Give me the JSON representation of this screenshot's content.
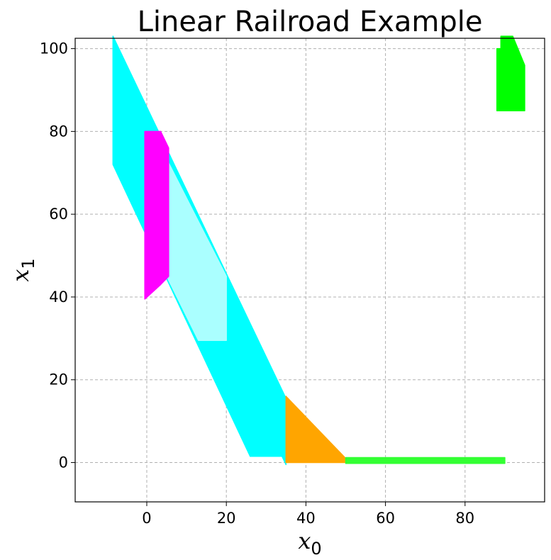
{
  "chart_data": {
    "type": "area",
    "title": "Linear Railroad Example",
    "xlabel": "x",
    "xlabel_sub": "0",
    "ylabel": "x",
    "ylabel_sub": "1",
    "xlim": [
      -18,
      100
    ],
    "ylim": [
      -9.5,
      102.5
    ],
    "xticks": [
      0,
      20,
      40,
      60,
      80
    ],
    "yticks": [
      0,
      20,
      40,
      60,
      80,
      100
    ],
    "grid": true,
    "regions": [
      {
        "name": "",
        "color": "#00ffff",
        "points": [
          [
            -8.5,
            72
          ],
          [
            -8.5,
            103
          ],
          [
            35,
            15.5
          ],
          [
            35,
            -0.5
          ],
          [
            34,
            1.5
          ],
          [
            26,
            1.5
          ]
        ]
      },
      {
        "name": "",
        "color": "#aaffff",
        "points": [
          [
            2,
            79
          ],
          [
            20,
            45
          ],
          [
            20,
            29.5
          ],
          [
            13,
            29.5
          ],
          [
            4,
            47
          ]
        ]
      },
      {
        "name": "",
        "color": "#ff00ff",
        "points": [
          [
            -0.5,
            39.5
          ],
          [
            -0.5,
            80
          ],
          [
            3.5,
            80
          ],
          [
            5.5,
            76
          ],
          [
            5.5,
            45
          ],
          [
            3.5,
            43
          ]
        ]
      },
      {
        "name": "",
        "color": "#ffa500",
        "points": [
          [
            35,
            16
          ],
          [
            35,
            0
          ],
          [
            50,
            0
          ],
          [
            50,
            1
          ]
        ]
      },
      {
        "name": "",
        "color": "#33ff33",
        "points": [
          [
            50,
            1.2
          ],
          [
            90,
            1.2
          ],
          [
            90,
            -0.2
          ],
          [
            50,
            -0.2
          ]
        ]
      },
      {
        "name": "",
        "color": "#00ff00",
        "points": [
          [
            88,
            85
          ],
          [
            88,
            100
          ],
          [
            89,
            100
          ],
          [
            89,
            103
          ],
          [
            92,
            103
          ],
          [
            95,
            96
          ],
          [
            95,
            85
          ]
        ]
      }
    ]
  }
}
